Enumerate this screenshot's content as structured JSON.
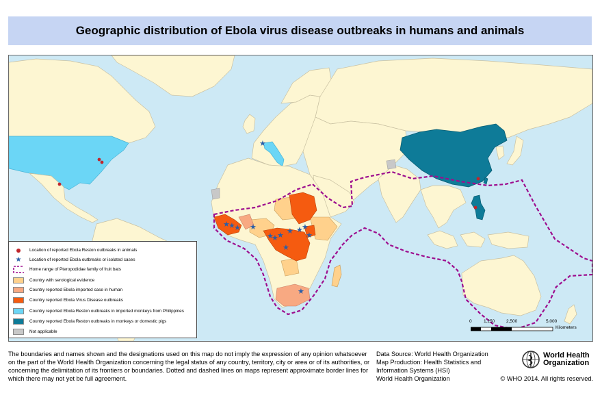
{
  "title": "Geographic distribution of Ebola virus disease outbreaks in humans and animals",
  "legend": {
    "items": [
      {
        "id": "reston-animals",
        "label": "Location of reported Ebola Reston outbreaks in animals",
        "symbol": "red-dot-icon",
        "color": "#c0262c"
      },
      {
        "id": "outbreak-stars",
        "label": "Location of reported Ebola outbreaks or isolated cases",
        "symbol": "blue-star-icon",
        "color": "#2a5ea8"
      },
      {
        "id": "fruit-bat-range",
        "label": "Home range of Pteropodidae family of  fruit bats",
        "symbol": "dashed-box-icon",
        "color": "#9d0d8e"
      },
      {
        "id": "serological",
        "label": "Country with serological evidence",
        "symbol": "swatch",
        "color": "#ffd18c"
      },
      {
        "id": "imported-human",
        "label": "Country reported Ebola imported case in human",
        "symbol": "swatch",
        "color": "#f8a982"
      },
      {
        "id": "evd-outbreaks",
        "label": "Country reported Ebola Virus Disease outbreaks",
        "symbol": "swatch",
        "color": "#f55b10"
      },
      {
        "id": "reston-imported-monkeys",
        "label": "Country reported Ebola Reston outbreaks in imported monkeys from Philippines",
        "symbol": "swatch",
        "color": "#6bd6f6"
      },
      {
        "id": "reston-monkeys-pigs",
        "label": "Country reported Ebola Reston outbreaks in monkeys or domestic pigs",
        "symbol": "swatch",
        "color": "#0e7b98"
      },
      {
        "id": "not-applicable",
        "label": "Not applicable",
        "symbol": "swatch",
        "color": "#c8c8c8"
      }
    ]
  },
  "map_colors": {
    "ocean": "#cde9f5",
    "land": "#fdf6d2",
    "border": "#c9c1a2",
    "bat_range": "#9d0d8e"
  },
  "scale": {
    "ticks": [
      "0",
      "1,250",
      "2,500",
      "5,000"
    ],
    "unit": "Kilometers"
  },
  "footer": {
    "disclaimer": "The boundaries and names shown and the designations used on this map do not imply the expression of any opinion whatsoever on the part of the World Health Organization concerning the legal status of any country, territory, city or area or of its authorities, or concerning the delimitation of its frontiers or boundaries. Dotted and dashed lines on maps represent approximate border lines for which there may not yet be full agreement.",
    "source_lines": [
      "Data Source: World Health Organization",
      "Map Production: Health Statistics and",
      "Information Systems (HSI)",
      "World Health Organization"
    ],
    "copyright": "© WHO 2014. All rights reserved.",
    "who_name": [
      "World Health",
      "Organization"
    ]
  }
}
